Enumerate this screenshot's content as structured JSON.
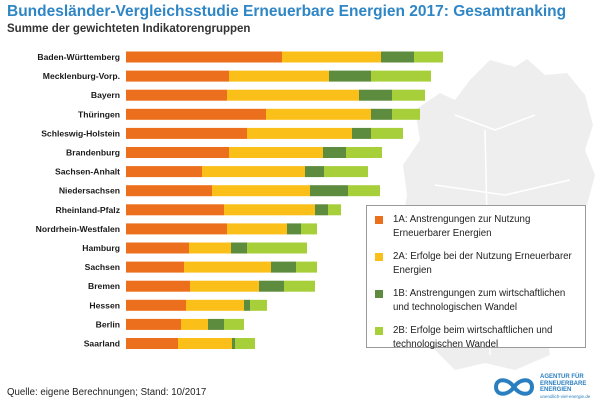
{
  "title": "Bundesländer-Vergleichsstudie Erneuerbare Energien 2017: Gesamtranking",
  "subtitle": "Summe der gewichteten Indikatorengruppen",
  "source": "Quelle: eigene Berechnungen; Stand: 10/2017",
  "logo": {
    "line1": "AGENTUR FÜR",
    "line2": "ERNEUERBARE",
    "line3": "ENERGIEN",
    "url": "unendlich-viel-energie.de"
  },
  "colors": {
    "title": "#2f86c5",
    "s1A": "#eb6f1d",
    "s2A": "#fbbf1a",
    "s1B": "#5e8c3e",
    "s2B": "#a6cf3a",
    "map": "#eeeeee"
  },
  "legend": [
    {
      "key": "1A",
      "label": "1A: Anstrengungen zur Nutzung Erneuerbarer Energien",
      "color": "#eb6f1d"
    },
    {
      "key": "2A",
      "label": "2A: Erfolge bei der Nutzung Erneuerbarer Energien",
      "color": "#fbbf1a"
    },
    {
      "key": "1B",
      "label": "1B: Anstrengungen zum wirtschaftlichen und technologischen Wandel",
      "color": "#5e8c3e"
    },
    {
      "key": "2B",
      "label": "2B: Erfolge beim wirtschaftlichen und technologischen Wandel",
      "color": "#a6cf3a"
    }
  ],
  "chart_data": {
    "type": "bar",
    "orientation": "horizontal",
    "stacked": true,
    "title": "Bundesländer-Vergleichsstudie Erneuerbare Energien 2017: Gesamtranking",
    "subtitle": "Summe der gewichteten Indikatorengruppen",
    "categories": [
      "Baden-Württemberg",
      "Mecklenburg-Vorp.",
      "Bayern",
      "Thüringen",
      "Schleswig-Holstein",
      "Brandenburg",
      "Sachsen-Anhalt",
      "Niedersachsen",
      "Rheinland-Pfalz",
      "Nordrhein-Westfalen",
      "Hamburg",
      "Sachsen",
      "Bremen",
      "Hessen",
      "Berlin",
      "Saarland"
    ],
    "series": [
      {
        "name": "1A: Anstrengungen zur Nutzung Erneuerbarer Energien",
        "color": "#eb6f1d",
        "values": [
          156,
          103,
          101,
          140,
          121,
          103,
          76,
          86,
          98,
          101,
          63,
          58,
          64,
          60,
          55,
          52
        ]
      },
      {
        "name": "2A: Erfolge bei der Nutzung Erneuerbarer Energien",
        "color": "#fbbf1a",
        "values": [
          99,
          100,
          132,
          105,
          105,
          94,
          103,
          98,
          91,
          60,
          42,
          87,
          69,
          58,
          27,
          54
        ]
      },
      {
        "name": "1B: Anstrengungen zum wirtschaftlichen und technologischen Wandel",
        "color": "#5e8c3e",
        "values": [
          33,
          42,
          33,
          21,
          19,
          23,
          19,
          38,
          13,
          14,
          16,
          25,
          25,
          6,
          16,
          3
        ]
      },
      {
        "name": "2B: Erfolge beim wirtschaftlichen und technologischen Wandel",
        "color": "#a6cf3a",
        "values": [
          29,
          60,
          33,
          28,
          32,
          36,
          44,
          32,
          13,
          16,
          60,
          21,
          31,
          17,
          20,
          20
        ]
      }
    ],
    "xlim": [
      0,
      320
    ],
    "grid": false,
    "legend_position": "right"
  }
}
